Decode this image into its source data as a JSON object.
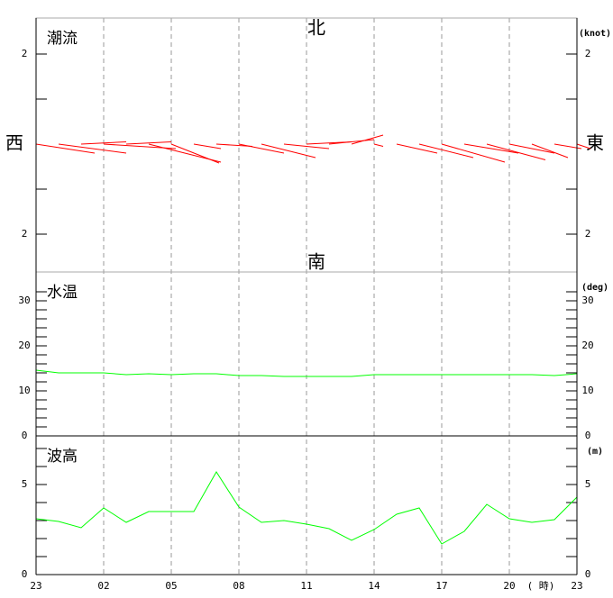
{
  "chart_data": [
    {
      "type": "vector",
      "title": "潮流",
      "unit": "(knot)",
      "annotations": {
        "north": "北",
        "south": "南",
        "west": "西",
        "east": "東"
      },
      "color": "#ff0000",
      "east": [
        1.3,
        1.5,
        1.0,
        1.6,
        1.0,
        1.6,
        1.06,
        0.6,
        0.8,
        1.0,
        1.2,
        1.0,
        1.0,
        1.0,
        0.7,
        0.2,
        0.9,
        1.2,
        1.4,
        1.2,
        1.3,
        1.0,
        0.8,
        0.6,
        0.3
      ],
      "north": [
        -0.2,
        -0.2,
        0.05,
        -0.1,
        0.05,
        -0.4,
        -0.42,
        -0.1,
        -0.05,
        -0.2,
        -0.3,
        -0.1,
        0.05,
        0.1,
        0.2,
        -0.05,
        -0.2,
        -0.3,
        -0.4,
        -0.2,
        -0.35,
        -0.2,
        -0.3,
        -0.1,
        -0.1
      ],
      "ylim": [
        -2.84,
        2.8
      ],
      "yticks": [
        2,
        {
          "value": -2,
          "label": "2"
        }
      ],
      "minor_yticks": [
        -1,
        1
      ]
    },
    {
      "type": "line",
      "title": "水温",
      "unit": "(deg)",
      "color": "#00ff00",
      "values": [
        14.6,
        14.0,
        14.0,
        14.0,
        13.6,
        13.8,
        13.6,
        13.8,
        13.8,
        13.4,
        13.4,
        13.2,
        13.2,
        13.2,
        13.2,
        13.6,
        13.6,
        13.6,
        13.6,
        13.6,
        13.6,
        13.6,
        13.6,
        13.4,
        13.8
      ],
      "ylim": [
        0,
        36.4
      ],
      "yticks": [
        0,
        10,
        20,
        30
      ],
      "minor_yticks": [
        2,
        4,
        6,
        8,
        12,
        14,
        16,
        18,
        22,
        24,
        26,
        28,
        32
      ]
    },
    {
      "type": "line",
      "title": "波高",
      "unit": "(m)",
      "color": "#00ff00",
      "values": [
        3.1,
        2.95,
        2.6,
        3.7,
        2.9,
        3.5,
        3.5,
        3.5,
        5.7,
        3.75,
        2.9,
        3.0,
        2.8,
        2.55,
        1.9,
        2.5,
        3.35,
        3.7,
        1.7,
        2.4,
        3.9,
        3.1,
        2.9,
        3.05,
        4.3
      ],
      "ylim": [
        0,
        7.7
      ],
      "yticks": [
        0,
        5
      ],
      "minor_yticks": [
        1,
        2,
        3,
        4,
        6,
        7
      ],
      "categories": [
        "23",
        null,
        null,
        "02",
        null,
        null,
        "05",
        null,
        null,
        "08",
        null,
        null,
        "11",
        null,
        null,
        "14",
        null,
        null,
        "17",
        null,
        null,
        "20",
        null,
        null,
        "23"
      ],
      "xlabel": "( 時)"
    }
  ]
}
